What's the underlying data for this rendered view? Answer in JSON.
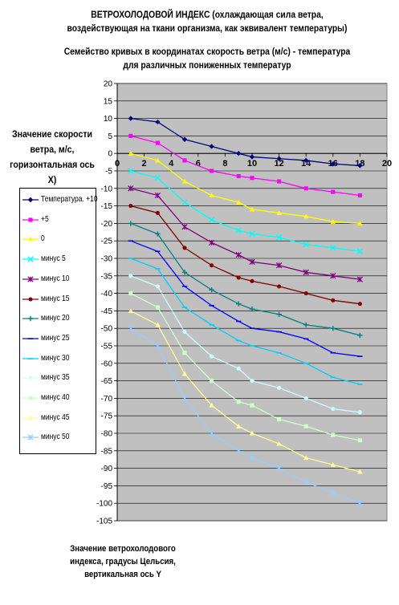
{
  "title_line1": "ВЕТРОХОЛОДОВОЙ ИНДЕКС (охлаждающая сила ветра, воздействующая на ткани организма, как эквивалент температуры)",
  "title_line2": "Семейство кривых в координатах скорость ветра (м/с) - температура для различных пониженных температур",
  "x_axis_note": "Значение скорости ветра, м/с, горизонтальная ось X)",
  "y_axis_note": "Значение ветрохолодового индекса, градусы Цельсия, вертикальная ось Y",
  "chart_data": {
    "type": "line",
    "xlabel": "Значение скорости ветра, м/с, горизонтальная ось X)",
    "ylabel": "Значение ветрохолодового индекса, градусы Цельсия, вертикальная ось Y",
    "xlim": [
      0,
      20
    ],
    "ylim": [
      -105,
      20
    ],
    "xticks": [
      0,
      2,
      4,
      6,
      8,
      10,
      12,
      14,
      16,
      18,
      20
    ],
    "yticks": [
      20,
      15,
      10,
      5,
      0,
      -5,
      -10,
      -15,
      -20,
      -25,
      -30,
      -35,
      -40,
      -45,
      -50,
      -55,
      -60,
      -65,
      -70,
      -75,
      -80,
      -85,
      -90,
      -95,
      -100,
      -105
    ],
    "x_axis_crosses_y": 0,
    "grid": "horizontal",
    "legend_position": "left",
    "plot_background": "#c0c0c0",
    "x": [
      1,
      3,
      5,
      7,
      9,
      10,
      12,
      14,
      16,
      18
    ],
    "series": [
      {
        "name": "Температура. +10",
        "color": "#000080",
        "marker": "diamond",
        "values": [
          10,
          9,
          4,
          2,
          0,
          -1,
          -1.5,
          -2,
          -3,
          -3.5
        ]
      },
      {
        "name": "+5",
        "color": "#ff00ff",
        "marker": "square",
        "values": [
          5,
          3,
          -2,
          -5,
          -6.5,
          -7,
          -8,
          -10,
          -11,
          -12
        ]
      },
      {
        "name": "0",
        "color": "#ffff00",
        "marker": "triangle",
        "values": [
          0,
          -2,
          -8,
          -12,
          -14,
          -16,
          -17,
          -18,
          -19.5,
          -20
        ]
      },
      {
        "name": "минус 5",
        "color": "#00ffff",
        "marker": "x",
        "values": [
          -5,
          -7,
          -14,
          -19,
          -22,
          -23,
          -24,
          -26,
          -27,
          -28
        ]
      },
      {
        "name": "минус 10",
        "color": "#800080",
        "marker": "star",
        "values": [
          -10,
          -12,
          -21,
          -25.5,
          -29,
          -31,
          -32,
          -34,
          -35,
          -36
        ]
      },
      {
        "name": "минус 15",
        "color": "#800000",
        "marker": "circle",
        "values": [
          -15,
          -17,
          -27,
          -32,
          -35.5,
          -36.5,
          -38,
          -40,
          -42,
          -43
        ]
      },
      {
        "name": "минус 20",
        "color": "#008080",
        "marker": "plus",
        "values": [
          -20,
          -23,
          -34,
          -39,
          -43,
          -44.5,
          -46,
          -49,
          -50,
          -52
        ]
      },
      {
        "name": "минус 25",
        "color": "#0000ff",
        "marker": "dash",
        "values": [
          -25,
          -28,
          -38,
          -43.5,
          -48,
          -50,
          -51,
          -53,
          -57,
          -58
        ]
      },
      {
        "name": "минус 30",
        "color": "#00ccff",
        "marker": "dash",
        "values": [
          -30,
          -33,
          -44,
          -49,
          -53.5,
          -55,
          -57,
          -60,
          -64,
          -66
        ]
      },
      {
        "name": "минус 35",
        "color": "#ccffff",
        "marker": "circle",
        "values": [
          -35,
          -38,
          -51,
          -58,
          -61.5,
          -65,
          -67,
          -70,
          -73,
          -74
        ]
      },
      {
        "name": "минус 40",
        "color": "#ccffcc",
        "marker": "square",
        "values": [
          -40,
          -44,
          -57,
          -65,
          -71,
          -72,
          -76,
          -78,
          -80.5,
          -82
        ]
      },
      {
        "name": "минус 45",
        "color": "#ffff99",
        "marker": "triangle",
        "values": [
          -45,
          -49,
          -63,
          -72,
          -78,
          -80,
          -83,
          -87,
          -89,
          -91
        ]
      },
      {
        "name": "минус 50",
        "color": "#99ccff",
        "marker": "star",
        "values": [
          -50,
          -55,
          -70,
          -80,
          -85,
          -87,
          -90,
          -94,
          -97,
          -100
        ]
      }
    ]
  }
}
